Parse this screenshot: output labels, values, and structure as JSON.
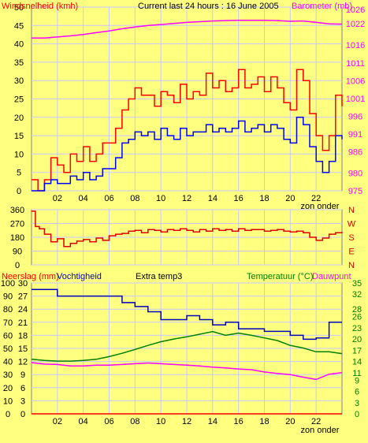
{
  "header": {
    "wind_label": "Windsnelheid (kmh)",
    "title": "Current last 24 hours : 16 June 2005",
    "baro_label": "Barometer (mb)"
  },
  "panel2": {
    "dir_label": "N W S E N"
  },
  "panel3": {
    "rain_label": "Neerslag (mm)",
    "humidity_label": "Vochtigheid",
    "extra_label": "Extra temp3",
    "temp_label": "Temperatuur (°C)",
    "dew_label": "Dauwpunt"
  },
  "colors": {
    "background": "#ffff80",
    "grid": "#c8c8ff",
    "wind_gust": "#ff0000",
    "wind_avg": "#0000ff",
    "barometer": "#ff00ff",
    "direction": "#e00000",
    "humidity": "#0000c0",
    "temperature": "#008000",
    "dewpoint": "#ff00ff",
    "rain": "#ff0000",
    "left_axis_text": "#000000",
    "right_axis_text_baro": "#ff00ff",
    "right_axis_text_temp": "#008000"
  },
  "chart_data": [
    {
      "type": "line",
      "title": "Current last 24 hours : 16 June 2005",
      "x_ticks": [
        "02",
        "04",
        "06",
        "08",
        "10",
        "12",
        "14",
        "16",
        "18",
        "20",
        "22"
      ],
      "x_end_label": "zon onder",
      "ylabel": "Windsnelheid (kmh)",
      "ylim": [
        0,
        50
      ],
      "y_ticks": [
        0,
        5,
        10,
        15,
        20,
        25,
        30,
        35,
        40,
        45,
        50
      ],
      "y2label": "Barometer (mb)",
      "y2lim": [
        975,
        1026.7
      ],
      "y2_ticks": [
        975,
        980,
        986,
        991,
        996,
        1001,
        1006,
        1011,
        1016,
        1022,
        1026
      ],
      "series": [
        {
          "name": "Barometer (mb)",
          "axis": "right",
          "x": [
            0,
            1,
            2,
            3,
            4,
            5,
            6,
            7,
            8,
            9,
            10,
            11,
            12,
            13,
            14,
            15,
            16,
            17,
            18,
            19,
            20,
            21,
            22,
            23,
            24
          ],
          "values": [
            1018,
            1018,
            1018.3,
            1018.6,
            1019,
            1019.5,
            1020,
            1020.6,
            1021.1,
            1021.5,
            1021.8,
            1022.1,
            1022.4,
            1022.6,
            1022.8,
            1022.9,
            1023,
            1023,
            1023,
            1022.9,
            1022.7,
            1022.8,
            1022.4,
            1022,
            1021.9
          ]
        },
        {
          "name": "Windsnelheid (kmh) gust",
          "axis": "left",
          "x": [
            0,
            0.5,
            1,
            1.5,
            2,
            2.5,
            3,
            3.5,
            4,
            4.5,
            5,
            5.5,
            6,
            6.5,
            7,
            7.5,
            8,
            8.5,
            9,
            9.5,
            10,
            10.5,
            11,
            11.5,
            12,
            12.5,
            13,
            13.5,
            14,
            14.5,
            15,
            15.5,
            16,
            16.5,
            17,
            17.5,
            18,
            18.5,
            19,
            19.5,
            20,
            20.5,
            21,
            21.5,
            22,
            22.5,
            23,
            23.5,
            24
          ],
          "values": [
            3,
            0,
            3,
            9,
            7,
            5,
            10,
            8,
            12,
            8,
            10,
            13,
            13,
            17,
            22,
            25,
            28,
            26,
            26,
            23,
            27,
            26,
            24,
            29,
            25,
            27,
            26,
            32,
            28,
            30,
            27,
            28,
            33,
            28,
            29,
            31,
            27,
            31,
            28,
            24,
            22,
            33,
            30,
            21,
            15,
            11,
            15,
            26,
            23
          ]
        },
        {
          "name": "Windsnelheid (kmh) avg",
          "axis": "left",
          "x": [
            0,
            0.5,
            1,
            1.5,
            2,
            2.5,
            3,
            3.5,
            4,
            4.5,
            5,
            5.5,
            6,
            6.5,
            7,
            7.5,
            8,
            8.5,
            9,
            9.5,
            10,
            10.5,
            11,
            11.5,
            12,
            12.5,
            13,
            13.5,
            14,
            14.5,
            15,
            15.5,
            16,
            16.5,
            17,
            17.5,
            18,
            18.5,
            19,
            19.5,
            20,
            20.5,
            21,
            21.5,
            22,
            22.5,
            23,
            23.5,
            24
          ],
          "values": [
            0,
            0,
            2,
            3,
            2,
            2,
            4,
            3,
            5,
            3,
            4,
            6,
            6,
            9,
            13,
            14,
            16,
            15,
            16,
            14,
            17,
            15,
            14,
            17,
            15,
            16,
            16,
            18,
            16,
            17,
            16,
            17,
            19,
            16,
            17,
            18,
            16,
            18,
            17,
            14,
            13,
            20,
            18,
            12,
            8,
            5,
            8,
            15,
            14
          ]
        }
      ]
    },
    {
      "type": "line",
      "ylim": [
        0,
        360
      ],
      "y_ticks": [
        0,
        90,
        180,
        270,
        360
      ],
      "right_labels": [
        "N",
        "W",
        "S",
        "E",
        "N"
      ],
      "series": [
        {
          "name": "Wind direction",
          "x": [
            0,
            0.3,
            0.6,
            1,
            1.5,
            2,
            2.5,
            3,
            3.5,
            4,
            4.5,
            5,
            5.5,
            6,
            6.5,
            7,
            7.5,
            8,
            8.5,
            9,
            9.5,
            10,
            10.5,
            11,
            11.5,
            12,
            12.5,
            13,
            13.5,
            14,
            14.5,
            15,
            15.5,
            16,
            16.5,
            17,
            17.5,
            18,
            18.5,
            19,
            19.5,
            20,
            20.5,
            21,
            21.5,
            22,
            22.5,
            23,
            23.5,
            24
          ],
          "values": [
            350,
            250,
            235,
            200,
            150,
            170,
            120,
            140,
            155,
            165,
            150,
            175,
            160,
            190,
            200,
            205,
            220,
            225,
            210,
            230,
            225,
            215,
            230,
            225,
            235,
            225,
            215,
            230,
            220,
            235,
            225,
            230,
            220,
            235,
            225,
            230,
            230,
            220,
            225,
            230,
            220,
            215,
            220,
            210,
            180,
            160,
            175,
            200,
            210,
            215
          ]
        }
      ]
    },
    {
      "type": "line",
      "ylabel": "Neerslag (mm) / Vochtigheid",
      "ylim": [
        0,
        100
      ],
      "y_ticks": [
        0,
        10,
        20,
        30,
        40,
        50,
        60,
        70,
        80,
        90,
        100
      ],
      "rain_ticks": [
        0,
        3,
        6,
        9,
        12,
        15,
        18,
        21,
        24,
        27,
        30
      ],
      "y2label": "Temperatuur (°C) / Dauwpunt",
      "y2lim": [
        0,
        35
      ],
      "y2_ticks": [
        0,
        3,
        6,
        9,
        11,
        14,
        17,
        20,
        23,
        26,
        28,
        32,
        35
      ],
      "x_ticks": [
        "02",
        "04",
        "06",
        "08",
        "10",
        "12",
        "14",
        "16",
        "18",
        "20",
        "22"
      ],
      "x_end_label": "zon onder",
      "series": [
        {
          "name": "Vochtigheid",
          "axis": "left",
          "x": [
            0,
            1,
            2,
            3,
            4,
            5,
            6,
            7,
            8,
            9,
            10,
            11,
            12,
            13,
            14,
            15,
            16,
            17,
            18,
            19,
            20,
            21,
            22,
            23,
            24
          ],
          "values": [
            95,
            95,
            90,
            90,
            90,
            90,
            90,
            85,
            82,
            78,
            72,
            72,
            75,
            72,
            68,
            70,
            65,
            65,
            63,
            63,
            60,
            57,
            58,
            70,
            70
          ]
        },
        {
          "name": "Temperatuur (°C)",
          "axis": "right",
          "x": [
            0,
            1,
            2,
            3,
            4,
            5,
            6,
            7,
            8,
            9,
            10,
            11,
            12,
            13,
            14,
            15,
            16,
            17,
            18,
            19,
            20,
            21,
            22,
            23,
            24
          ],
          "values": [
            14.6,
            14.3,
            14.1,
            14.1,
            14.3,
            14.6,
            15.3,
            16.2,
            17.2,
            18.3,
            19.3,
            20.0,
            20.6,
            21.3,
            22.0,
            21.0,
            21.6,
            21.0,
            20.3,
            19.6,
            18.3,
            17.6,
            16.6,
            16.6,
            16.1
          ]
        },
        {
          "name": "Dauwpunt",
          "axis": "right",
          "x": [
            0,
            1,
            2,
            3,
            4,
            5,
            6,
            7,
            8,
            9,
            10,
            11,
            12,
            13,
            14,
            15,
            16,
            17,
            18,
            19,
            20,
            21,
            22,
            23,
            24
          ],
          "values": [
            13.7,
            13.3,
            13.2,
            12.8,
            12.8,
            13.0,
            13.0,
            13.2,
            13.4,
            13.6,
            13.4,
            13.2,
            13.0,
            12.8,
            12.5,
            12.3,
            12.0,
            11.8,
            11.2,
            10.8,
            10.5,
            9.8,
            9.2,
            10.6,
            11.0
          ]
        },
        {
          "name": "Neerslag (mm)",
          "axis": "left",
          "x": [
            0,
            24
          ],
          "values": [
            0,
            0
          ]
        }
      ]
    }
  ]
}
